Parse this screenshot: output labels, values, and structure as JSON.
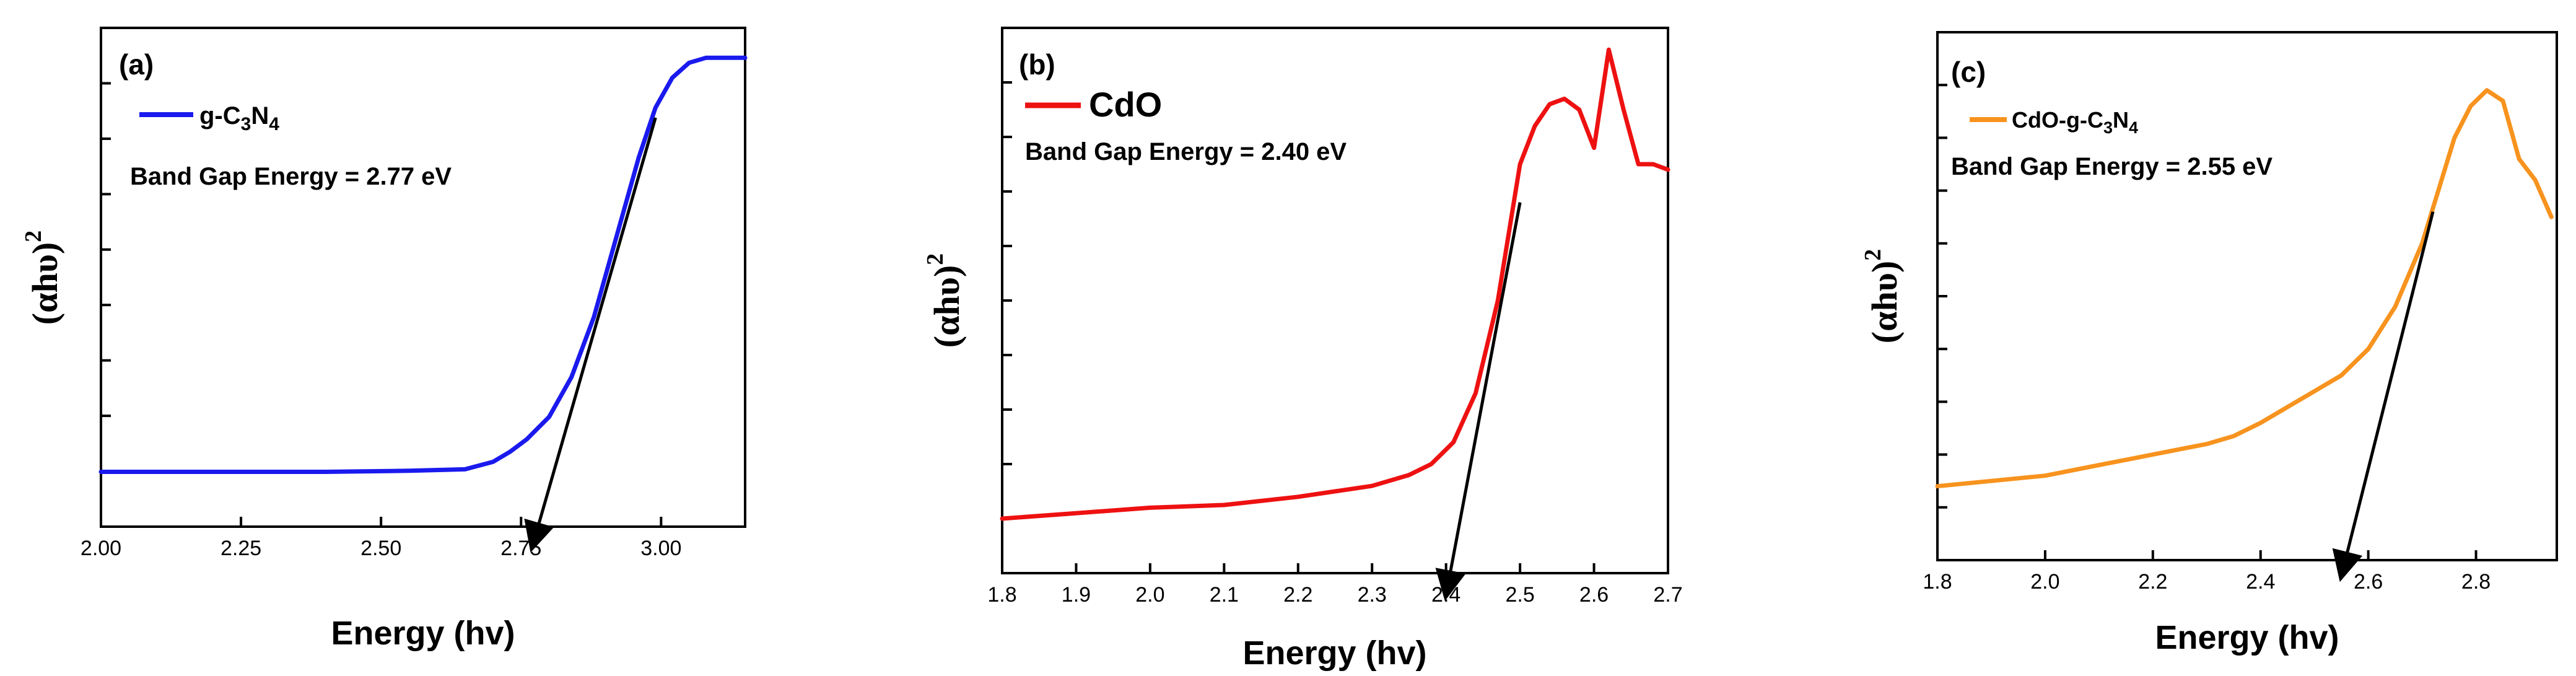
{
  "chart_data": [
    {
      "type": "line",
      "panel_label": "(a)",
      "legend": "g-C3N4",
      "legend_parts": {
        "base": "g-C",
        "sub1": "3",
        "mid": "N",
        "sub2": "4"
      },
      "annotation": "Band Gap Energy = 2.77 eV",
      "xlabel": "Energy (hv)",
      "ylabel": "(αhυ)",
      "ylabel_sup": "2",
      "xlim": [
        2.0,
        3.15
      ],
      "ylim": [
        0,
        1.0
      ],
      "xticks": [
        2.0,
        2.25,
        2.5,
        2.75,
        3.0
      ],
      "xtick_labels": [
        "2.00",
        "2.25",
        "2.50",
        "2.75",
        "3.00"
      ],
      "y_minor_ticks": 8,
      "color": "#1a1aee",
      "series": [
        {
          "name": "g-C3N4",
          "x": [
            2.0,
            2.2,
            2.4,
            2.55,
            2.65,
            2.7,
            2.73,
            2.76,
            2.8,
            2.84,
            2.88,
            2.92,
            2.96,
            2.99,
            3.02,
            3.05,
            3.08,
            3.15
          ],
          "y": [
            0.11,
            0.11,
            0.11,
            0.112,
            0.115,
            0.13,
            0.15,
            0.175,
            0.22,
            0.3,
            0.42,
            0.58,
            0.74,
            0.84,
            0.9,
            0.93,
            0.94,
            0.94
          ]
        }
      ],
      "tangent": {
        "x": [
          2.99,
          2.77
        ],
        "y": [
          0.82,
          -0.04
        ]
      }
    },
    {
      "type": "line",
      "panel_label": "(b)",
      "legend": "CdO",
      "annotation": "Band Gap Energy = 2.40 eV",
      "xlabel": "Energy (hv)",
      "ylabel": "(αhυ)",
      "ylabel_sup": "2",
      "xlim": [
        1.8,
        2.7
      ],
      "ylim": [
        0,
        1.0
      ],
      "xticks": [
        1.8,
        1.9,
        2.0,
        2.1,
        2.2,
        2.3,
        2.4,
        2.5,
        2.6,
        2.7
      ],
      "xtick_labels": [
        "1.8",
        "1.9",
        "2.0",
        "2.1",
        "2.2",
        "2.3",
        "2.4",
        "2.5",
        "2.6",
        "2.7"
      ],
      "y_minor_ticks": 9,
      "color": "#ee1111",
      "series": [
        {
          "name": "CdO",
          "x": [
            1.8,
            1.9,
            2.0,
            2.1,
            2.2,
            2.3,
            2.35,
            2.38,
            2.41,
            2.44,
            2.47,
            2.5,
            2.52,
            2.54,
            2.56,
            2.58,
            2.6,
            2.62,
            2.64,
            2.66,
            2.68,
            2.7
          ],
          "y": [
            0.1,
            0.11,
            0.12,
            0.125,
            0.14,
            0.16,
            0.18,
            0.2,
            0.24,
            0.33,
            0.5,
            0.75,
            0.82,
            0.86,
            0.87,
            0.85,
            0.78,
            0.96,
            0.85,
            0.75,
            0.75,
            0.74
          ]
        }
      ],
      "tangent": {
        "x": [
          2.5,
          2.4
        ],
        "y": [
          0.68,
          -0.04
        ]
      }
    },
    {
      "type": "line",
      "panel_label": "(c)",
      "legend": "CdO-g-C3N4",
      "legend_parts": {
        "base": "CdO-g-C",
        "sub1": "3",
        "mid": "N",
        "sub2": "4"
      },
      "annotation": "Band Gap Energy = 2.55 eV",
      "xlabel": "Energy (hv)",
      "ylabel": "(αhυ)",
      "ylabel_sup": "2",
      "xlim": [
        1.8,
        2.95
      ],
      "ylim": [
        0,
        1.0
      ],
      "xticks": [
        1.8,
        2.0,
        2.2,
        2.4,
        2.6,
        2.8
      ],
      "xtick_labels": [
        "1.8",
        "2.0",
        "2.2",
        "2.4",
        "2.6",
        "2.8"
      ],
      "y_minor_ticks": 9,
      "color": "#f7931e",
      "series": [
        {
          "name": "CdO-g-C3N4",
          "x": [
            1.8,
            1.9,
            2.0,
            2.1,
            2.2,
            2.3,
            2.35,
            2.4,
            2.45,
            2.5,
            2.55,
            2.6,
            2.65,
            2.7,
            2.73,
            2.76,
            2.79,
            2.82,
            2.85,
            2.88,
            2.91,
            2.94
          ],
          "y": [
            0.14,
            0.15,
            0.16,
            0.18,
            0.2,
            0.22,
            0.235,
            0.26,
            0.29,
            0.32,
            0.35,
            0.4,
            0.48,
            0.6,
            0.7,
            0.8,
            0.86,
            0.89,
            0.87,
            0.76,
            0.72,
            0.65
          ]
        }
      ],
      "tangent": {
        "x": [
          2.72,
          2.55
        ],
        "y": [
          0.66,
          -0.03
        ]
      }
    }
  ]
}
